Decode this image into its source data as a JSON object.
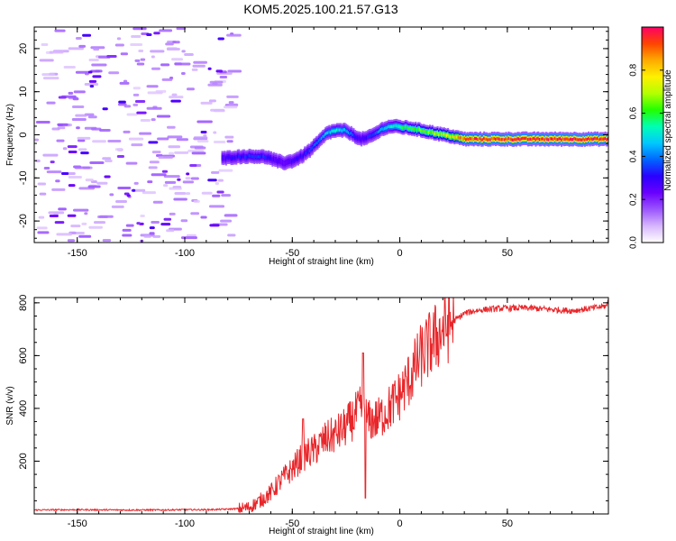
{
  "figure": {
    "title": "KOM5.2025.100.21.57.G13"
  },
  "chart_data": [
    {
      "type": "heatmap",
      "title": "KOM5.2025.100.21.57.G13",
      "xlabel": "Height of straight line (km)",
      "ylabel": "Frequency (Hz)",
      "xlim": [
        -170,
        97
      ],
      "ylim": [
        -25,
        25
      ],
      "x_ticks": [
        -150,
        -100,
        -50,
        0,
        50
      ],
      "y_ticks": [
        -20,
        -10,
        0,
        10,
        20
      ],
      "grid": false,
      "colorbar": {
        "label": "Normalized spectral amplitude",
        "range": [
          0.0,
          1.0
        ],
        "ticks": [
          0.0,
          0.2,
          0.4,
          0.6,
          0.8
        ],
        "tick_labels": [
          "0.0",
          "0.2",
          "0.4",
          "0.6",
          "0.8"
        ],
        "colormap": [
          "#ffffff",
          "#d7b6ff",
          "#9b55ff",
          "#6a00ff",
          "#2a00ff",
          "#0066ff",
          "#00c8ff",
          "#00ffb4",
          "#22ff00",
          "#b4ff00",
          "#fff000",
          "#ffaa00",
          "#ff4400",
          "#ff0066"
        ]
      },
      "ridge": {
        "x": [
          -83,
          -78,
          -72,
          -66,
          -62,
          -58,
          -54,
          -50,
          -46,
          -42,
          -38,
          -34,
          -30,
          -26,
          -22,
          -19,
          -16,
          -12,
          -8,
          -4,
          0,
          5,
          10,
          15,
          20,
          25,
          30,
          40,
          50,
          60,
          70,
          80,
          90,
          97
        ],
        "freq": [
          -5.5,
          -5.2,
          -5.0,
          -5.0,
          -5.2,
          -6.0,
          -6.5,
          -6.0,
          -5.0,
          -3.5,
          -1.5,
          0.5,
          1.0,
          1.0,
          0.0,
          -1.0,
          -0.8,
          0.2,
          1.5,
          2.0,
          1.8,
          1.5,
          1.0,
          0.5,
          0.0,
          -0.5,
          -1.0,
          -1.0,
          -1.0,
          -1.0,
          -1.0,
          -1.0,
          -1.0,
          -1.0
        ],
        "amplitude": [
          0.25,
          0.3,
          0.32,
          0.35,
          0.3,
          0.25,
          0.22,
          0.28,
          0.3,
          0.35,
          0.4,
          0.45,
          0.5,
          0.45,
          0.35,
          0.25,
          0.3,
          0.35,
          0.45,
          0.5,
          0.55,
          0.6,
          0.62,
          0.65,
          0.7,
          0.75,
          0.9,
          0.92,
          0.93,
          0.94,
          0.93,
          0.95,
          0.93,
          0.92
        ]
      }
    },
    {
      "type": "line",
      "xlabel": "Height of straight line (km)",
      "ylabel": "SNR (v/v)",
      "xlim": [
        -170,
        97
      ],
      "ylim": [
        0,
        820
      ],
      "x_ticks": [
        -150,
        -100,
        -50,
        0,
        50
      ],
      "y_ticks": [
        200,
        400,
        600,
        800
      ],
      "grid": false,
      "color": "#e8262a",
      "series": [
        {
          "x": [
            -170,
            -150,
            -130,
            -110,
            -100,
            -90,
            -80,
            -75,
            -70,
            -65,
            -60,
            -55,
            -50,
            -45,
            -40,
            -35,
            -30,
            -25,
            -20,
            -17,
            -15,
            -10,
            -5,
            0,
            5,
            10,
            15,
            20,
            25,
            30,
            35,
            40,
            50,
            60,
            70,
            80,
            90,
            97
          ],
          "values": [
            15,
            16,
            15,
            15,
            16,
            16,
            18,
            20,
            25,
            50,
            80,
            130,
            170,
            220,
            240,
            280,
            300,
            330,
            380,
            410,
            350,
            360,
            400,
            450,
            520,
            600,
            650,
            700,
            730,
            760,
            770,
            775,
            780,
            780,
            775,
            770,
            780,
            790
          ],
          "peaks": [
            {
              "x": -45,
              "value": 360
            },
            {
              "x": -17,
              "value": 610
            },
            {
              "x": -16,
              "value": 60
            },
            {
              "x": 97,
              "value": 810
            }
          ]
        }
      ]
    }
  ]
}
